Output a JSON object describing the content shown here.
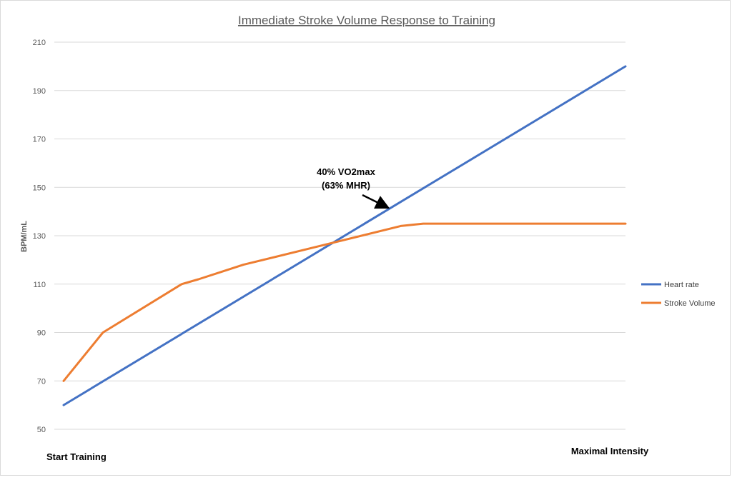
{
  "chart_data": {
    "type": "line",
    "title": "Immediate Stroke Volume Response to Training",
    "ylabel": "BPM/mL",
    "x_start_label": "Start Training",
    "x_end_label": "Maximal Intensity",
    "ylim": [
      50,
      210
    ],
    "yticks": [
      50,
      70,
      90,
      110,
      130,
      150,
      170,
      190,
      210
    ],
    "xlim": [
      0,
      100
    ],
    "grid": true,
    "legend_position": "right",
    "annotation": {
      "lines": [
        "40% VO2max",
        "(63% MHR)"
      ],
      "point": [
        58,
        141
      ]
    },
    "series": [
      {
        "name": "Heart rate",
        "color": "#4472C4",
        "x": [
          0,
          100
        ],
        "y": [
          60,
          200
        ]
      },
      {
        "name": "Stroke Volume",
        "color": "#ED7D31",
        "x": [
          0,
          7,
          21,
          24,
          32,
          46,
          60,
          64,
          100
        ],
        "y": [
          70,
          90,
          110,
          112,
          118,
          126,
          134,
          135,
          135
        ]
      }
    ]
  }
}
